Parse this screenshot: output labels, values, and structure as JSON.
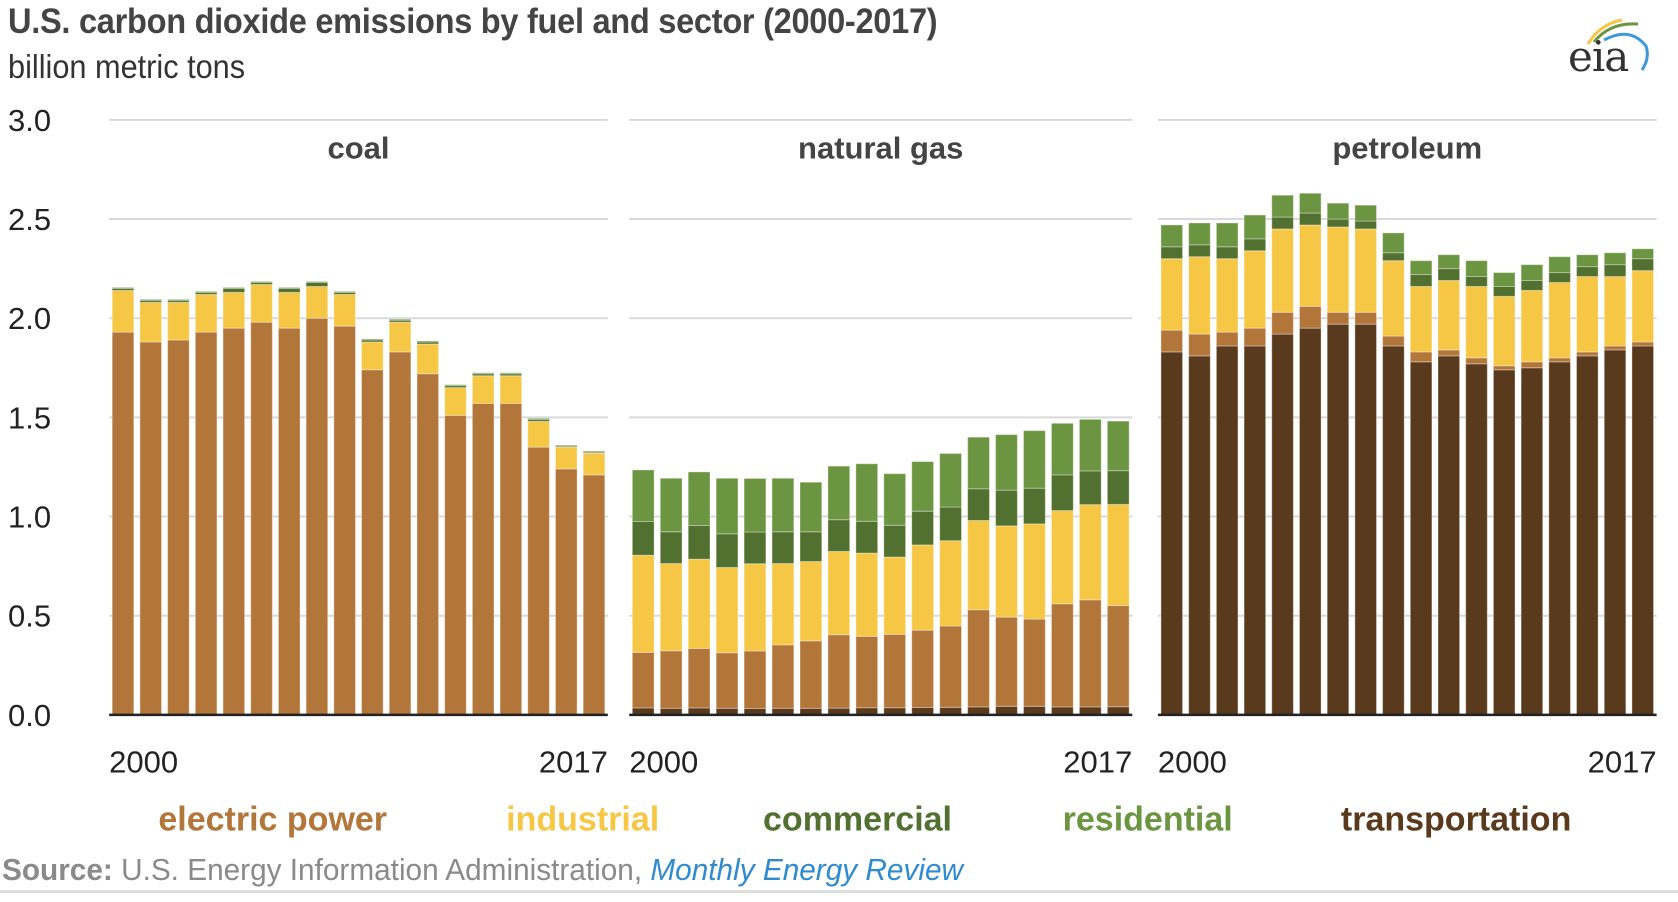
{
  "title": "U.S. carbon dioxide emissions by fuel and sector (2000-2017)",
  "subtitle": "billion metric tons",
  "logo": {
    "text": "eia",
    "icon": "eia-logo-icon"
  },
  "source": {
    "label": "Source:",
    "text": " U.S. Energy Information Administration, ",
    "link_text": "Monthly Energy Review"
  },
  "colors": {
    "electric power": "#b3763a",
    "industrial": "#f5c744",
    "commercial": "#527030",
    "residential": "#6b9540",
    "transportation": "#5a3a1c"
  },
  "chart_data": {
    "type": "bar",
    "stacked": true,
    "title": "U.S. carbon dioxide emissions by fuel and sector (2000-2017)",
    "ylabel": "billion metric tons",
    "ylim": [
      0,
      3.0
    ],
    "yticks": [
      "0.0",
      "0.5",
      "1.0",
      "1.5",
      "2.0",
      "2.5",
      "3.0"
    ],
    "ytick_values": [
      0,
      0.5,
      1.0,
      1.5,
      2.0,
      2.5,
      3.0
    ],
    "grid": true,
    "legend_position": "bottom",
    "legend": [
      "electric power",
      "industrial",
      "commercial",
      "residential",
      "transportation"
    ],
    "x": [
      2000,
      2001,
      2002,
      2003,
      2004,
      2005,
      2006,
      2007,
      2008,
      2009,
      2010,
      2011,
      2012,
      2013,
      2014,
      2015,
      2016,
      2017
    ],
    "x_tick_labels": [
      "2000",
      "2017"
    ],
    "panels": [
      {
        "name": "coal",
        "series": [
          {
            "name": "transportation",
            "values": [
              0,
              0,
              0,
              0,
              0,
              0,
              0,
              0,
              0,
              0,
              0,
              0,
              0,
              0,
              0,
              0,
              0,
              0
            ]
          },
          {
            "name": "electric power",
            "values": [
              1.93,
              1.88,
              1.89,
              1.93,
              1.95,
              1.98,
              1.95,
              2.0,
              1.96,
              1.74,
              1.83,
              1.72,
              1.51,
              1.57,
              1.57,
              1.35,
              1.24,
              1.21
            ]
          },
          {
            "name": "industrial",
            "values": [
              0.21,
              0.2,
              0.19,
              0.19,
              0.18,
              0.19,
              0.18,
              0.16,
              0.16,
              0.14,
              0.15,
              0.15,
              0.14,
              0.14,
              0.14,
              0.13,
              0.11,
              0.11
            ]
          },
          {
            "name": "commercial",
            "values": [
              0.01,
              0.01,
              0.01,
              0.01,
              0.02,
              0.01,
              0.02,
              0.02,
              0.01,
              0.01,
              0.01,
              0.01,
              0.01,
              0.01,
              0.01,
              0.01,
              0.005,
              0.005
            ]
          },
          {
            "name": "residential",
            "values": [
              0.005,
              0.005,
              0.005,
              0.005,
              0.005,
              0.005,
              0.005,
              0.005,
              0.005,
              0.005,
              0.005,
              0.005,
              0.005,
              0.005,
              0.005,
              0.005,
              0.005,
              0.005
            ]
          }
        ]
      },
      {
        "name": "natural gas",
        "series": [
          {
            "name": "transportation",
            "values": [
              0.035,
              0.033,
              0.035,
              0.033,
              0.032,
              0.033,
              0.033,
              0.034,
              0.036,
              0.036,
              0.037,
              0.038,
              0.04,
              0.043,
              0.043,
              0.04,
              0.04,
              0.041
            ]
          },
          {
            "name": "electric power",
            "values": [
              0.28,
              0.29,
              0.3,
              0.28,
              0.29,
              0.32,
              0.34,
              0.37,
              0.36,
              0.37,
              0.39,
              0.41,
              0.49,
              0.45,
              0.44,
              0.52,
              0.54,
              0.51
            ]
          },
          {
            "name": "industrial",
            "values": [
              0.49,
              0.44,
              0.45,
              0.43,
              0.44,
              0.41,
              0.4,
              0.42,
              0.42,
              0.39,
              0.43,
              0.43,
              0.45,
              0.46,
              0.48,
              0.47,
              0.48,
              0.51
            ]
          },
          {
            "name": "commercial",
            "values": [
              0.17,
              0.16,
              0.17,
              0.17,
              0.16,
              0.16,
              0.15,
              0.16,
              0.16,
              0.16,
              0.17,
              0.17,
              0.16,
              0.18,
              0.18,
              0.18,
              0.17,
              0.17
            ]
          },
          {
            "name": "residential",
            "values": [
              0.26,
              0.27,
              0.27,
              0.28,
              0.27,
              0.27,
              0.25,
              0.27,
              0.29,
              0.26,
              0.25,
              0.27,
              0.26,
              0.28,
              0.29,
              0.26,
              0.26,
              0.25
            ]
          }
        ]
      },
      {
        "name": "petroleum",
        "series": [
          {
            "name": "transportation",
            "values": [
              1.83,
              1.81,
              1.86,
              1.86,
              1.92,
              1.95,
              1.97,
              1.97,
              1.86,
              1.78,
              1.81,
              1.77,
              1.74,
              1.75,
              1.78,
              1.81,
              1.84,
              1.86
            ]
          },
          {
            "name": "electric power",
            "values": [
              0.11,
              0.11,
              0.07,
              0.09,
              0.11,
              0.11,
              0.06,
              0.06,
              0.05,
              0.05,
              0.03,
              0.03,
              0.02,
              0.03,
              0.02,
              0.02,
              0.02,
              0.02
            ]
          },
          {
            "name": "industrial",
            "values": [
              0.36,
              0.39,
              0.37,
              0.39,
              0.42,
              0.41,
              0.43,
              0.42,
              0.38,
              0.33,
              0.35,
              0.36,
              0.35,
              0.36,
              0.38,
              0.38,
              0.35,
              0.36
            ]
          },
          {
            "name": "commercial",
            "values": [
              0.06,
              0.06,
              0.06,
              0.06,
              0.06,
              0.06,
              0.04,
              0.04,
              0.04,
              0.06,
              0.06,
              0.05,
              0.05,
              0.05,
              0.05,
              0.05,
              0.06,
              0.06
            ]
          },
          {
            "name": "residential",
            "values": [
              0.11,
              0.11,
              0.12,
              0.12,
              0.11,
              0.1,
              0.08,
              0.08,
              0.1,
              0.07,
              0.07,
              0.08,
              0.07,
              0.08,
              0.08,
              0.06,
              0.06,
              0.05
            ]
          }
        ]
      }
    ]
  }
}
